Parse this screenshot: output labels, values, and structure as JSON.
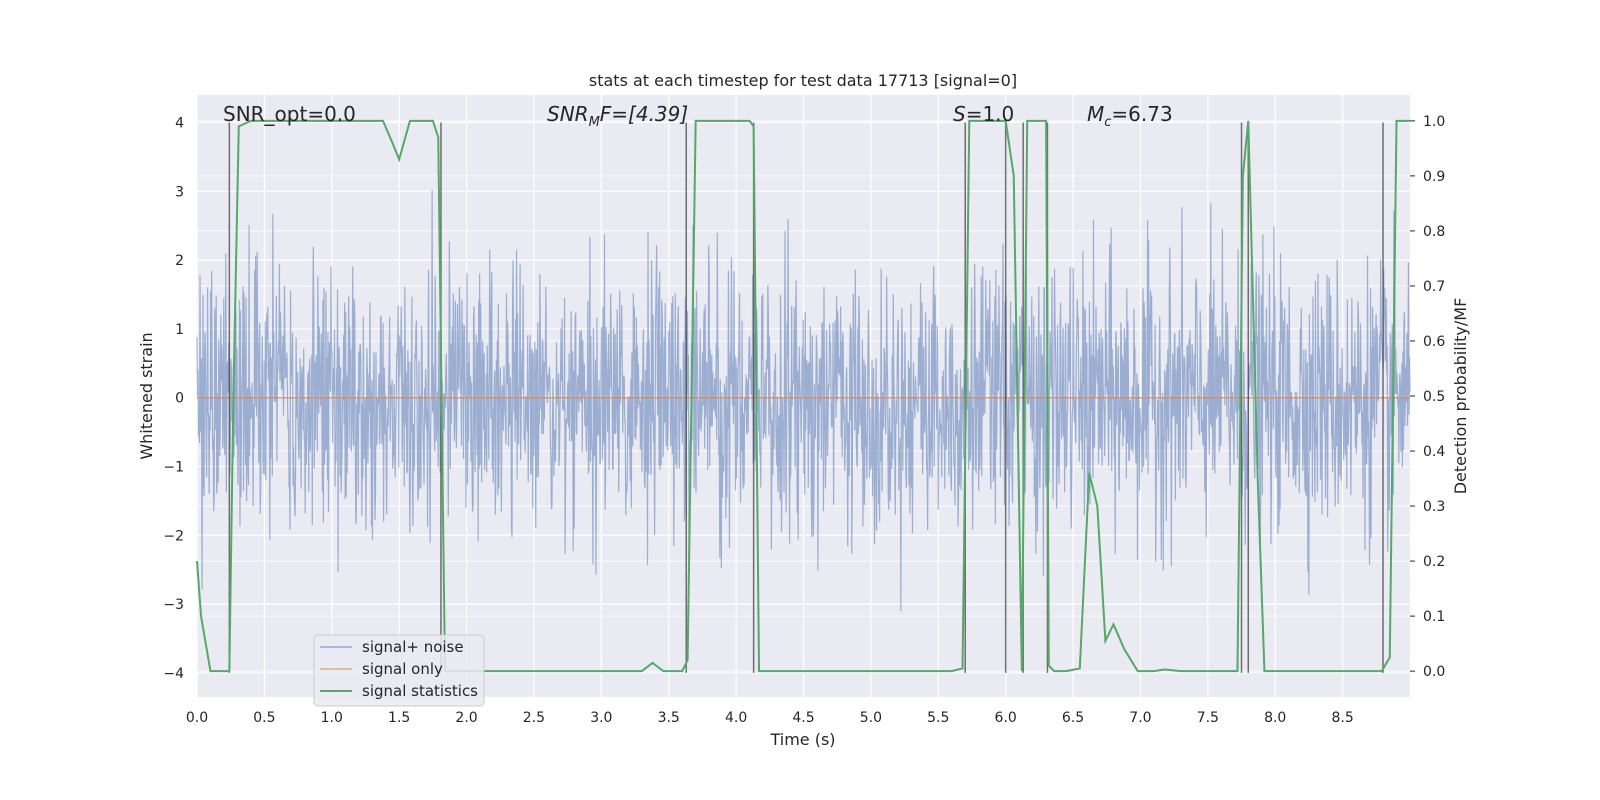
{
  "chart_data": {
    "type": "line",
    "title": "stats at each timestep for test data 17713 [signal=0]",
    "xlabel": "Time (s)",
    "ylabel_left": "Whitened strain",
    "ylabel_right": "Detection probability/MF",
    "xlim": [
      0.0,
      9.0
    ],
    "ylim_left": [
      -4.35,
      4.4
    ],
    "ylim_right": [
      -0.047,
      1.047
    ],
    "x_ticks": [
      "0.0",
      "0.5",
      "1.0",
      "1.5",
      "2.0",
      "2.5",
      "3.0",
      "3.5",
      "4.0",
      "4.5",
      "5.0",
      "5.5",
      "6.0",
      "6.5",
      "7.0",
      "7.5",
      "8.0",
      "8.5"
    ],
    "y_ticks_left": [
      "−4",
      "−3",
      "−2",
      "−1",
      "0",
      "1",
      "2",
      "3",
      "4"
    ],
    "y_ticks_right": [
      "0.0",
      "0.1",
      "0.2",
      "0.3",
      "0.4",
      "0.5",
      "0.6",
      "0.7",
      "0.8",
      "0.9",
      "1.0"
    ],
    "grid": true,
    "legend_position": "lower-left",
    "annotations": {
      "snr_opt": "SNR_opt=0.0",
      "snr_mf_prefix": "SNR",
      "snr_mf_sub": "M",
      "snr_mf_suffix": "F=[4.39]",
      "s_var": "S",
      "s_value": "=1.0",
      "mc_var": "M",
      "mc_sub": "c",
      "mc_value": "=6.73"
    },
    "series": [
      {
        "name": "signal+ noise",
        "color": "#4c72b0",
        "kind": "noise",
        "envelope_typical": 2.0,
        "envelope_max": 3.8
      },
      {
        "name": "signal only",
        "color": "#dd8452",
        "values_constant": 0.0
      },
      {
        "name": "signal statistics",
        "color": "#55a868",
        "axis": "right",
        "x": [
          0.0,
          0.03,
          0.1,
          0.18,
          0.24,
          0.27,
          0.31,
          0.4,
          0.5,
          0.6,
          0.8,
          1.0,
          1.2,
          1.38,
          1.45,
          1.5,
          1.58,
          1.75,
          1.79,
          1.84,
          1.87,
          1.95,
          2.2,
          2.8,
          3.3,
          3.38,
          3.46,
          3.6,
          3.64,
          3.7,
          4.0,
          4.1,
          4.13,
          4.17,
          4.3,
          5.0,
          5.6,
          5.68,
          5.73,
          5.8,
          5.9,
          6.0,
          6.06,
          6.12,
          6.16,
          6.2,
          6.3,
          6.32,
          6.36,
          6.45,
          6.55,
          6.62,
          6.68,
          6.74,
          6.8,
          6.88,
          6.98,
          7.1,
          7.18,
          7.3,
          7.5,
          7.72,
          7.76,
          7.8,
          7.87,
          7.92,
          8.0,
          8.3,
          8.5,
          8.79,
          8.85,
          8.9,
          8.95,
          9.0
        ],
        "values": [
          0.2,
          0.1,
          0.0,
          0.0,
          0.0,
          0.5,
          0.99,
          1.0,
          1.0,
          1.0,
          1.0,
          1.0,
          1.0,
          1.0,
          0.96,
          0.93,
          1.0,
          1.0,
          0.97,
          0.0,
          0.0,
          0.0,
          0.0,
          0.0,
          0.0,
          0.015,
          0.0,
          0.0,
          0.02,
          1.0,
          1.0,
          1.0,
          0.99,
          0.0,
          0.0,
          0.0,
          0.0,
          0.005,
          1.0,
          1.0,
          1.0,
          1.0,
          0.9,
          0.0,
          1.0,
          1.0,
          1.0,
          0.01,
          0.0,
          0.0,
          0.005,
          0.36,
          0.3,
          0.055,
          0.085,
          0.04,
          0.0,
          0.0,
          0.003,
          0.0,
          0.0,
          0.0,
          0.9,
          1.0,
          0.35,
          0.0,
          0.0,
          0.0,
          0.0,
          0.0,
          0.025,
          1.0,
          1.0,
          1.0
        ]
      }
    ],
    "event_markers_x": [
      0.24,
      1.81,
      3.63,
      4.13,
      5.7,
      6.0,
      6.13,
      6.31,
      7.75,
      7.8,
      8.8
    ]
  }
}
